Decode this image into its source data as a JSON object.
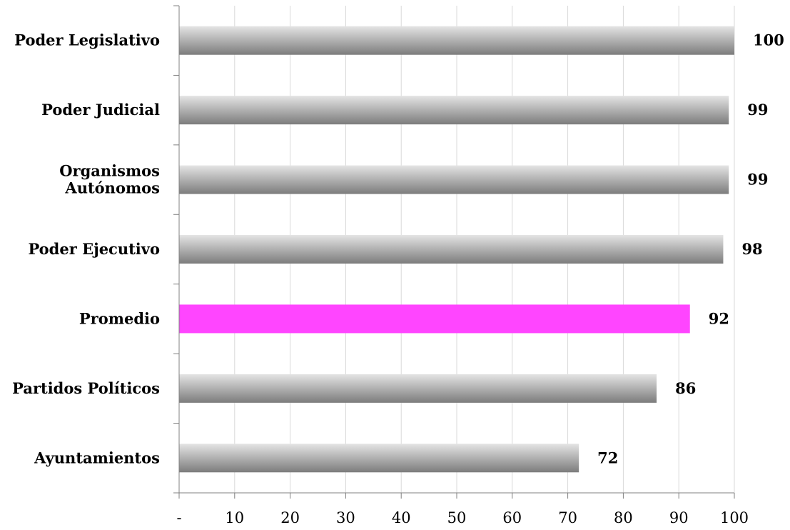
{
  "chart_data": {
    "type": "bar",
    "orientation": "horizontal",
    "categories": [
      [
        "Poder Legislativo"
      ],
      [
        "Poder Judicial"
      ],
      [
        "Organismos",
        "Autónomos"
      ],
      [
        "Poder Ejecutivo"
      ],
      [
        "Promedio"
      ],
      [
        "Partidos Políticos"
      ],
      [
        "Ayuntamientos"
      ]
    ],
    "values": [
      100,
      99,
      99,
      98,
      92,
      86,
      72
    ],
    "value_labels": [
      "100",
      "99",
      "99",
      "98",
      "92",
      "86",
      "72"
    ],
    "highlight_index": 4,
    "xlim": [
      0,
      100
    ],
    "xticks": [
      0,
      10,
      20,
      30,
      40,
      50,
      60,
      70,
      80,
      90,
      100
    ],
    "xtick_labels": [
      "-",
      "10",
      "20",
      "30",
      "40",
      "50",
      "60",
      "70",
      "80",
      "90",
      "100"
    ],
    "grid": "vertical",
    "colors": {
      "bar_light": "#e4e4e4",
      "bar_dark": "#7c7c7c",
      "highlight": "#ff45ff",
      "grid": "#d9d9d9",
      "axis": "#808080"
    },
    "title": "",
    "xlabel": "",
    "ylabel": ""
  }
}
